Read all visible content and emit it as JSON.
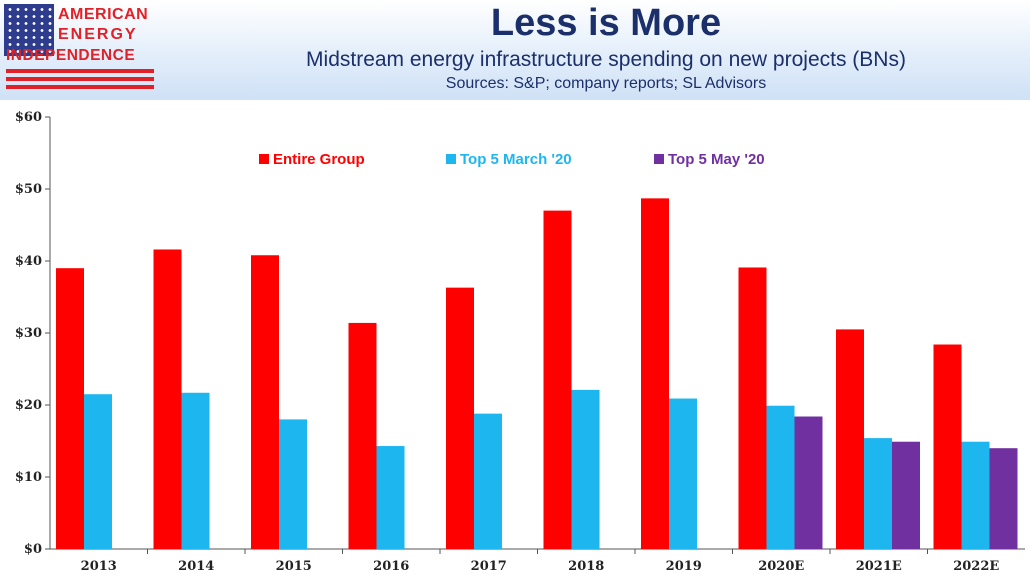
{
  "header": {
    "logo": {
      "line1": "AMERICAN",
      "line2": "ENERGY",
      "line3": "INDEPENDENCE"
    },
    "title": "Less is More",
    "subtitle": "Midstream energy infrastructure spending on new projects (BNs)",
    "sources": "Sources: S&P; company reports; SL Advisors"
  },
  "colors": {
    "entire_group": "#ff0000",
    "top5_march": "#1eb6ee",
    "top5_may": "#7030a0"
  },
  "chart_data": {
    "type": "bar",
    "title": "Less is More",
    "subtitle": "Midstream energy infrastructure spending on new projects (BNs)",
    "categories": [
      "2013",
      "2014",
      "2015",
      "2016",
      "2017",
      "2018",
      "2019",
      "2020E",
      "2021E",
      "2022E"
    ],
    "series": [
      {
        "name": "Entire Group",
        "color": "#ff0000",
        "values": [
          39.0,
          41.6,
          40.8,
          31.4,
          36.3,
          47.0,
          48.7,
          39.1,
          30.5,
          28.4
        ]
      },
      {
        "name": "Top 5 March '20",
        "color": "#1eb6ee",
        "values": [
          21.5,
          21.7,
          18.0,
          14.3,
          18.8,
          22.1,
          20.9,
          19.9,
          15.4,
          14.9
        ]
      },
      {
        "name": "Top 5 May '20",
        "color": "#7030a0",
        "values": [
          null,
          null,
          null,
          null,
          null,
          null,
          null,
          18.4,
          14.9,
          14.0
        ]
      }
    ],
    "yticks": [
      "$0",
      "$10",
      "$20",
      "$30",
      "$40",
      "$50",
      "$60"
    ],
    "ylim": [
      0,
      60
    ],
    "xlabel": "",
    "ylabel": "",
    "grid": false,
    "legend": "top"
  }
}
